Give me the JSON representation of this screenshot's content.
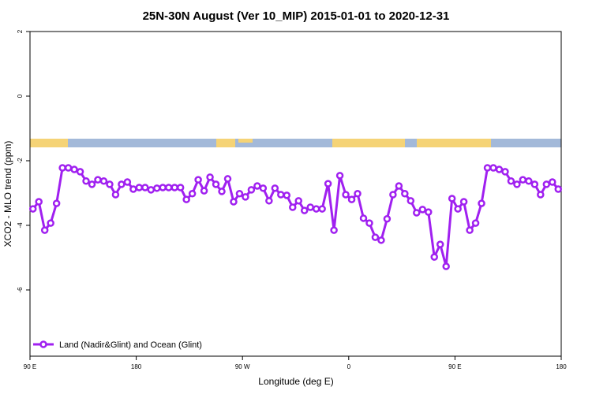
{
  "chart_data": {
    "type": "line",
    "title": "25N-30N August (Ver 10_MIP)   2015-01-01 to 2020-12-31",
    "xlabel": "Longitude (deg E)",
    "ylabel": "XCO2 - MLO trend (ppm)",
    "xlim": [
      90,
      540
    ],
    "ylim": [
      -8.05,
      2
    ],
    "xticks": [
      {
        "value": 90,
        "label": "90 E"
      },
      180,
      {
        "value": 270,
        "label": "90 W"
      },
      {
        "value": 360,
        "label": "0"
      },
      {
        "value": 450,
        "label": "90 E"
      },
      {
        "value": 540,
        "label": "180"
      }
    ],
    "yticks": [
      2,
      0,
      -2,
      -4,
      -6
    ],
    "legend": "lower left",
    "x": [
      92.5,
      97.5,
      102.5,
      107.5,
      112.5,
      117.5,
      122.5,
      127.5,
      132.5,
      137.5,
      142.5,
      147.5,
      152.5,
      157.5,
      162.5,
      167.5,
      172.5,
      177.5,
      182.5,
      187.5,
      192.5,
      197.5,
      202.5,
      207.5,
      212.5,
      217.5,
      222.5,
      227.5,
      232.5,
      237.5,
      242.5,
      247.5,
      252.5,
      257.5,
      262.5,
      267.5,
      272.5,
      277.5,
      282.5,
      287.5,
      292.5,
      297.5,
      302.5,
      307.5,
      312.5,
      317.5,
      322.5,
      327.5,
      332.5,
      337.5,
      342.5,
      347.5,
      352.5,
      357.5,
      362.5,
      367.5,
      372.5,
      377.5,
      382.5,
      387.5,
      392.5,
      397.5,
      402.5,
      407.5,
      412.5,
      417.5,
      422.5,
      427.5,
      432.5,
      437.5,
      442.5,
      447.5,
      452.5,
      457.5,
      462.5,
      467.5,
      472.5,
      477.5,
      482.5,
      487.5,
      492.5,
      497.5,
      502.5,
      507.5,
      512.5,
      517.5,
      522.5,
      527.5,
      532.5,
      537.5
    ],
    "series": [
      {
        "name": "Land (Nadir&Glint) and Ocean (Glint)",
        "color": "#a020f0",
        "values": [
          -3.49,
          -3.27,
          -4.15,
          -3.93,
          -3.32,
          -2.22,
          -2.22,
          -2.27,
          -2.34,
          -2.63,
          -2.73,
          -2.59,
          -2.63,
          -2.73,
          -3.05,
          -2.73,
          -2.66,
          -2.88,
          -2.83,
          -2.83,
          -2.9,
          -2.85,
          -2.83,
          -2.83,
          -2.83,
          -2.83,
          -3.2,
          -3.02,
          -2.59,
          -2.93,
          -2.51,
          -2.73,
          -2.95,
          -2.56,
          -3.27,
          -3.02,
          -3.12,
          -2.9,
          -2.78,
          -2.85,
          -3.24,
          -2.85,
          -3.05,
          -3.07,
          -3.44,
          -3.24,
          -3.54,
          -3.44,
          -3.49,
          -3.49,
          -2.71,
          -4.15,
          -2.46,
          -3.05,
          -3.2,
          -3.02,
          -3.78,
          -3.93,
          -4.37,
          -4.46,
          -3.8,
          -3.05,
          -2.78,
          -3.02,
          -3.24,
          -3.61,
          -3.51,
          -3.59,
          -4.98,
          -4.59,
          -5.27,
          -3.17,
          -3.49,
          -3.27,
          -4.15,
          -3.93,
          -3.32,
          -2.22,
          -2.22,
          -2.27,
          -2.34,
          -2.63,
          -2.73,
          -2.59,
          -2.63,
          -2.73,
          -3.05,
          -2.73,
          -2.66,
          -2.88
        ]
      }
    ]
  }
}
